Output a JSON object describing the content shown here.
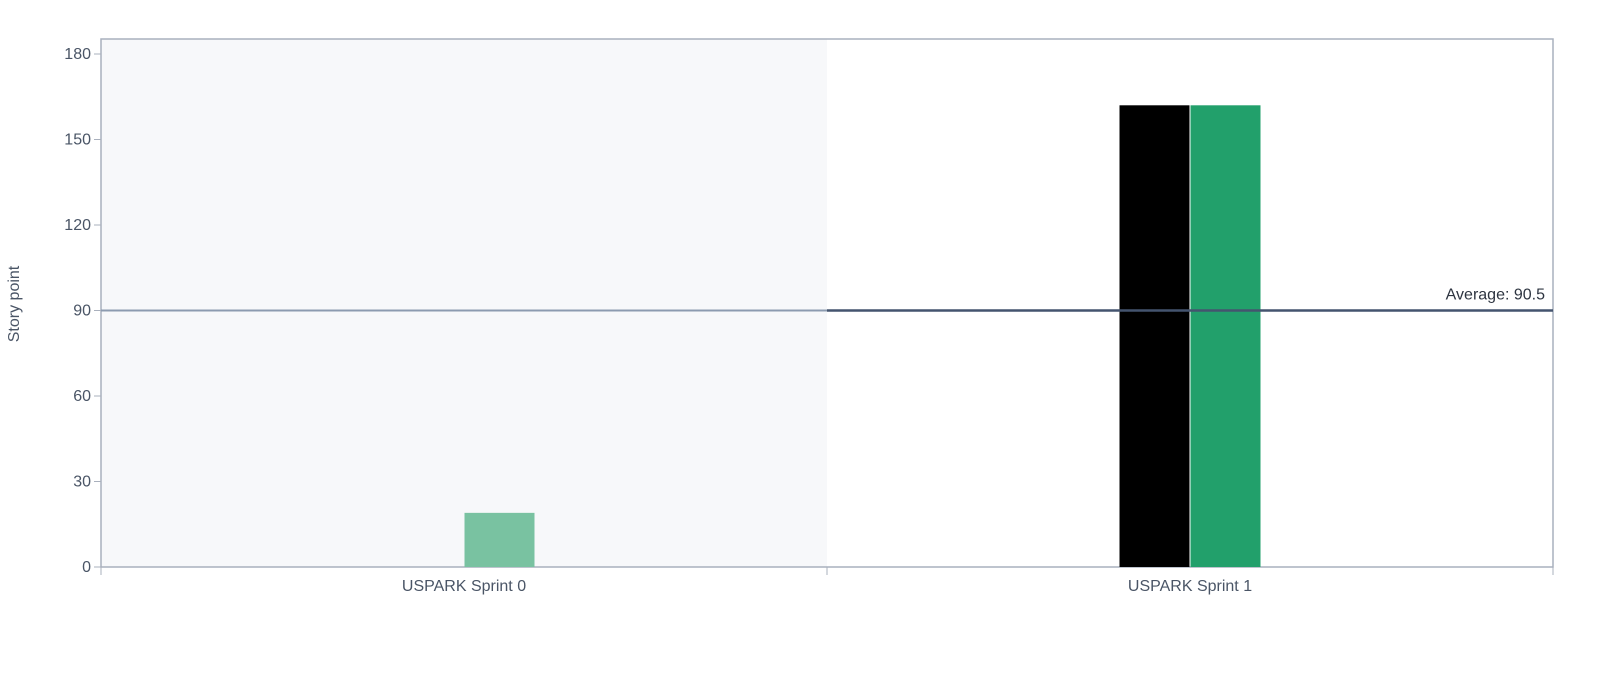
{
  "chart_data": {
    "type": "bar",
    "ylabel": "Story point",
    "xlabel": "",
    "title": "",
    "ylim": [
      0,
      180
    ],
    "yticks": [
      0,
      30,
      60,
      90,
      120,
      150,
      180
    ],
    "categories": [
      "USPARK Sprint 0",
      "USPARK Sprint 1"
    ],
    "series": [
      {
        "values": [
          0,
          162
        ],
        "color": "#000000"
      },
      {
        "values": [
          19,
          162
        ],
        "color": "#22a06b"
      }
    ],
    "average": {
      "value": 90.5,
      "label": "Average: 90.5",
      "color": "#44546f"
    },
    "grid": false,
    "legend": "none"
  }
}
